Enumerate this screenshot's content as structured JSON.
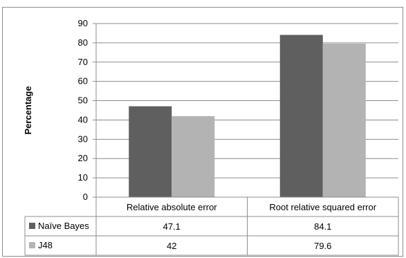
{
  "chart_data": {
    "type": "bar",
    "ylabel": "Percentage",
    "ylim": [
      0,
      90
    ],
    "yticks": [
      0,
      10,
      20,
      30,
      40,
      50,
      60,
      70,
      80,
      90
    ],
    "grid": true,
    "legend": "data-table",
    "categories": [
      "Relative absolute error",
      "Root relative squared error"
    ],
    "series": [
      {
        "name": "Naïve Bayes",
        "color": "#5f5f5f",
        "values": [
          47.1,
          84.1
        ],
        "labels": [
          "47.1",
          "84.1"
        ]
      },
      {
        "name": "J48",
        "color": "#b3b3b3",
        "values": [
          42,
          79.6
        ],
        "labels": [
          "42",
          "79.6"
        ]
      }
    ]
  }
}
